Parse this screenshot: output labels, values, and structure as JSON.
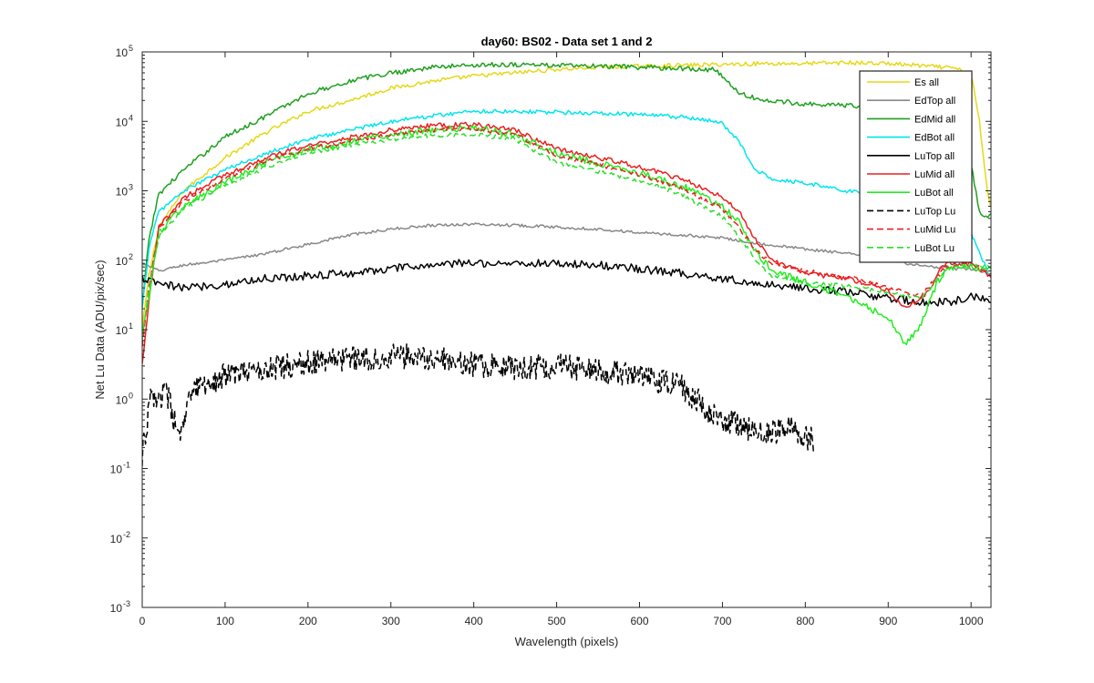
{
  "chart_data": {
    "type": "line",
    "title": "day60: BS02 - Data set 1 and 2",
    "xlabel": "Wavelength (pixels)",
    "ylabel": "Net Lu Data (ADU/pix/sec)",
    "xlim": [
      0,
      1024
    ],
    "ylim": [
      0.001,
      100000
    ],
    "yscale": "log",
    "x_ticks": [
      0,
      100,
      200,
      300,
      400,
      500,
      600,
      700,
      800,
      900,
      1000
    ],
    "y_ticks": [
      {
        "base": "10",
        "exp": "-3"
      },
      {
        "base": "10",
        "exp": "-2"
      },
      {
        "base": "10",
        "exp": "-1"
      },
      {
        "base": "10",
        "exp": "0"
      },
      {
        "base": "10",
        "exp": "1"
      },
      {
        "base": "10",
        "exp": "2"
      },
      {
        "base": "10",
        "exp": "3"
      },
      {
        "base": "10",
        "exp": "4"
      },
      {
        "base": "10",
        "exp": "5"
      }
    ],
    "legend_position": "top-right",
    "series": [
      {
        "name": "Es  all",
        "color": "#e6d817",
        "dash": "solid",
        "noise": 0.03,
        "points": [
          [
            0,
            10
          ],
          [
            8,
            60
          ],
          [
            20,
            300
          ],
          [
            50,
            1000
          ],
          [
            100,
            3000
          ],
          [
            150,
            7000
          ],
          [
            200,
            14000
          ],
          [
            250,
            20000
          ],
          [
            300,
            30000
          ],
          [
            350,
            38000
          ],
          [
            400,
            45000
          ],
          [
            450,
            50000
          ],
          [
            500,
            56000
          ],
          [
            550,
            60000
          ],
          [
            600,
            62000
          ],
          [
            650,
            64000
          ],
          [
            700,
            66000
          ],
          [
            750,
            68000
          ],
          [
            800,
            68000
          ],
          [
            850,
            70000
          ],
          [
            900,
            68000
          ],
          [
            950,
            62000
          ],
          [
            980,
            58000
          ],
          [
            1000,
            48000
          ],
          [
            1010,
            10000
          ],
          [
            1020,
            900
          ],
          [
            1024,
            600
          ]
        ]
      },
      {
        "name": "EdTop  all",
        "color": "#888888",
        "dash": "solid",
        "noise": 0.02,
        "points": [
          [
            0,
            90
          ],
          [
            20,
            70
          ],
          [
            50,
            85
          ],
          [
            100,
            100
          ],
          [
            150,
            125
          ],
          [
            200,
            170
          ],
          [
            250,
            230
          ],
          [
            300,
            280
          ],
          [
            350,
            320
          ],
          [
            400,
            330
          ],
          [
            450,
            320
          ],
          [
            500,
            300
          ],
          [
            550,
            280
          ],
          [
            600,
            250
          ],
          [
            650,
            230
          ],
          [
            700,
            210
          ],
          [
            750,
            170
          ],
          [
            800,
            145
          ],
          [
            850,
            125
          ],
          [
            900,
            100
          ],
          [
            950,
            80
          ],
          [
            980,
            75
          ],
          [
            1000,
            75
          ],
          [
            1010,
            70
          ],
          [
            1020,
            65
          ],
          [
            1024,
            60
          ]
        ]
      },
      {
        "name": "EdMid  all",
        "color": "#1ea01e",
        "dash": "solid",
        "noise": 0.035,
        "points": [
          [
            0,
            20
          ],
          [
            8,
            200
          ],
          [
            20,
            900
          ],
          [
            50,
            2000
          ],
          [
            100,
            6000
          ],
          [
            150,
            12000
          ],
          [
            200,
            25000
          ],
          [
            250,
            38000
          ],
          [
            300,
            50000
          ],
          [
            350,
            60000
          ],
          [
            400,
            65000
          ],
          [
            450,
            66000
          ],
          [
            500,
            64000
          ],
          [
            550,
            62000
          ],
          [
            600,
            60000
          ],
          [
            650,
            58000
          ],
          [
            690,
            55000
          ],
          [
            705,
            40000
          ],
          [
            720,
            25000
          ],
          [
            750,
            20000
          ],
          [
            800,
            18000
          ],
          [
            850,
            17000
          ],
          [
            900,
            15000
          ],
          [
            950,
            13000
          ],
          [
            980,
            10000
          ],
          [
            1000,
            2500
          ],
          [
            1010,
            500
          ],
          [
            1020,
            400
          ],
          [
            1024,
            450
          ]
        ]
      },
      {
        "name": "EdBot  all",
        "color": "#00e5ee",
        "dash": "solid",
        "noise": 0.03,
        "points": [
          [
            0,
            20
          ],
          [
            8,
            150
          ],
          [
            20,
            500
          ],
          [
            50,
            1000
          ],
          [
            100,
            2000
          ],
          [
            150,
            3500
          ],
          [
            200,
            5500
          ],
          [
            250,
            7500
          ],
          [
            300,
            10000
          ],
          [
            350,
            12000
          ],
          [
            400,
            14000
          ],
          [
            450,
            14000
          ],
          [
            500,
            13500
          ],
          [
            550,
            13000
          ],
          [
            600,
            12500
          ],
          [
            650,
            11500
          ],
          [
            700,
            9500
          ],
          [
            720,
            5000
          ],
          [
            740,
            2000
          ],
          [
            760,
            1500
          ],
          [
            800,
            1300
          ],
          [
            850,
            1000
          ],
          [
            900,
            850
          ],
          [
            950,
            650
          ],
          [
            980,
            500
          ],
          [
            1000,
            250
          ],
          [
            1020,
            70
          ],
          [
            1024,
            60
          ]
        ]
      },
      {
        "name": "LuTop  all",
        "color": "#000000",
        "dash": "solid",
        "noise": 0.06,
        "points": [
          [
            0,
            55
          ],
          [
            20,
            45
          ],
          [
            50,
            40
          ],
          [
            100,
            45
          ],
          [
            150,
            55
          ],
          [
            200,
            60
          ],
          [
            250,
            65
          ],
          [
            300,
            75
          ],
          [
            350,
            85
          ],
          [
            400,
            92
          ],
          [
            450,
            90
          ],
          [
            500,
            90
          ],
          [
            550,
            85
          ],
          [
            600,
            75
          ],
          [
            650,
            65
          ],
          [
            700,
            55
          ],
          [
            750,
            45
          ],
          [
            800,
            40
          ],
          [
            850,
            35
          ],
          [
            900,
            28
          ],
          [
            950,
            24
          ],
          [
            980,
            26
          ],
          [
            1000,
            30
          ],
          [
            1024,
            26
          ]
        ]
      },
      {
        "name": "LuMid  all",
        "color": "#e82020",
        "dash": "solid",
        "noise": 0.035,
        "points": [
          [
            0,
            3
          ],
          [
            8,
            25
          ],
          [
            20,
            300
          ],
          [
            50,
            800
          ],
          [
            100,
            1700
          ],
          [
            150,
            3000
          ],
          [
            200,
            4500
          ],
          [
            250,
            5800
          ],
          [
            300,
            7500
          ],
          [
            350,
            8700
          ],
          [
            400,
            9000
          ],
          [
            450,
            7500
          ],
          [
            500,
            4000
          ],
          [
            550,
            3000
          ],
          [
            600,
            2200
          ],
          [
            650,
            1500
          ],
          [
            700,
            800
          ],
          [
            720,
            500
          ],
          [
            740,
            200
          ],
          [
            760,
            100
          ],
          [
            800,
            65
          ],
          [
            850,
            55
          ],
          [
            900,
            38
          ],
          [
            920,
            20
          ],
          [
            950,
            35
          ],
          [
            960,
            70
          ],
          [
            970,
            90
          ],
          [
            1000,
            85
          ],
          [
            1024,
            60
          ]
        ]
      },
      {
        "name": "LuBot  all",
        "color": "#22ee22",
        "dash": "solid",
        "noise": 0.05,
        "points": [
          [
            0,
            8
          ],
          [
            8,
            30
          ],
          [
            20,
            250
          ],
          [
            50,
            600
          ],
          [
            100,
            1300
          ],
          [
            150,
            2500
          ],
          [
            200,
            4000
          ],
          [
            250,
            5000
          ],
          [
            300,
            6500
          ],
          [
            350,
            7500
          ],
          [
            400,
            8000
          ],
          [
            450,
            6500
          ],
          [
            500,
            3500
          ],
          [
            550,
            2500
          ],
          [
            600,
            1800
          ],
          [
            650,
            1200
          ],
          [
            700,
            600
          ],
          [
            720,
            350
          ],
          [
            740,
            130
          ],
          [
            760,
            70
          ],
          [
            800,
            48
          ],
          [
            850,
            30
          ],
          [
            900,
            15
          ],
          [
            920,
            6
          ],
          [
            940,
            12
          ],
          [
            960,
            50
          ],
          [
            970,
            75
          ],
          [
            1000,
            80
          ],
          [
            1024,
            75
          ]
        ]
      },
      {
        "name": "LuTop  Lu",
        "color": "#000000",
        "dash": "dashed",
        "noise": 0.18,
        "points": [
          [
            0,
            0.15
          ],
          [
            10,
            1.0
          ],
          [
            30,
            1.2
          ],
          [
            45,
            0.25
          ],
          [
            60,
            1.3
          ],
          [
            100,
            2.2
          ],
          [
            150,
            2.8
          ],
          [
            200,
            3.3
          ],
          [
            250,
            3.8
          ],
          [
            300,
            4.2
          ],
          [
            350,
            4.0
          ],
          [
            400,
            3.2
          ],
          [
            450,
            2.8
          ],
          [
            500,
            3.0
          ],
          [
            550,
            2.6
          ],
          [
            600,
            2.2
          ],
          [
            650,
            1.5
          ],
          [
            690,
            0.6
          ],
          [
            700,
            0.5
          ],
          [
            740,
            0.35
          ],
          [
            750,
            0.3
          ],
          [
            780,
            0.4
          ],
          [
            810,
            0.25
          ]
        ]
      },
      {
        "name": "LuMid  Lu",
        "color": "#e82020",
        "dash": "dashed",
        "noise": 0.03,
        "points": [
          [
            0,
            6
          ],
          [
            8,
            40
          ],
          [
            20,
            280
          ],
          [
            50,
            700
          ],
          [
            100,
            1500
          ],
          [
            150,
            2700
          ],
          [
            200,
            4000
          ],
          [
            250,
            5200
          ],
          [
            300,
            6500
          ],
          [
            350,
            7500
          ],
          [
            400,
            7800
          ],
          [
            450,
            6500
          ],
          [
            500,
            3200
          ],
          [
            550,
            2400
          ],
          [
            600,
            1700
          ],
          [
            650,
            1100
          ],
          [
            700,
            550
          ],
          [
            720,
            300
          ],
          [
            740,
            140
          ],
          [
            760,
            90
          ],
          [
            800,
            70
          ],
          [
            850,
            58
          ],
          [
            900,
            40
          ],
          [
            940,
            30
          ],
          [
            960,
            60
          ],
          [
            970,
            80
          ],
          [
            1000,
            90
          ],
          [
            1024,
            65
          ]
        ]
      },
      {
        "name": "LuBot  Lu",
        "color": "#2adf2a",
        "dash": "dashed",
        "noise": 0.03,
        "points": [
          [
            0,
            8
          ],
          [
            8,
            35
          ],
          [
            20,
            220
          ],
          [
            50,
            550
          ],
          [
            100,
            1200
          ],
          [
            150,
            2200
          ],
          [
            200,
            3500
          ],
          [
            250,
            4500
          ],
          [
            300,
            5500
          ],
          [
            350,
            6300
          ],
          [
            400,
            6500
          ],
          [
            450,
            5500
          ],
          [
            500,
            2500
          ],
          [
            550,
            1900
          ],
          [
            600,
            1400
          ],
          [
            650,
            900
          ],
          [
            700,
            420
          ],
          [
            720,
            220
          ],
          [
            740,
            100
          ],
          [
            760,
            60
          ],
          [
            800,
            48
          ],
          [
            850,
            42
          ],
          [
            900,
            35
          ],
          [
            940,
            28
          ],
          [
            960,
            55
          ],
          [
            970,
            75
          ],
          [
            1000,
            85
          ],
          [
            1024,
            80
          ]
        ]
      }
    ]
  }
}
